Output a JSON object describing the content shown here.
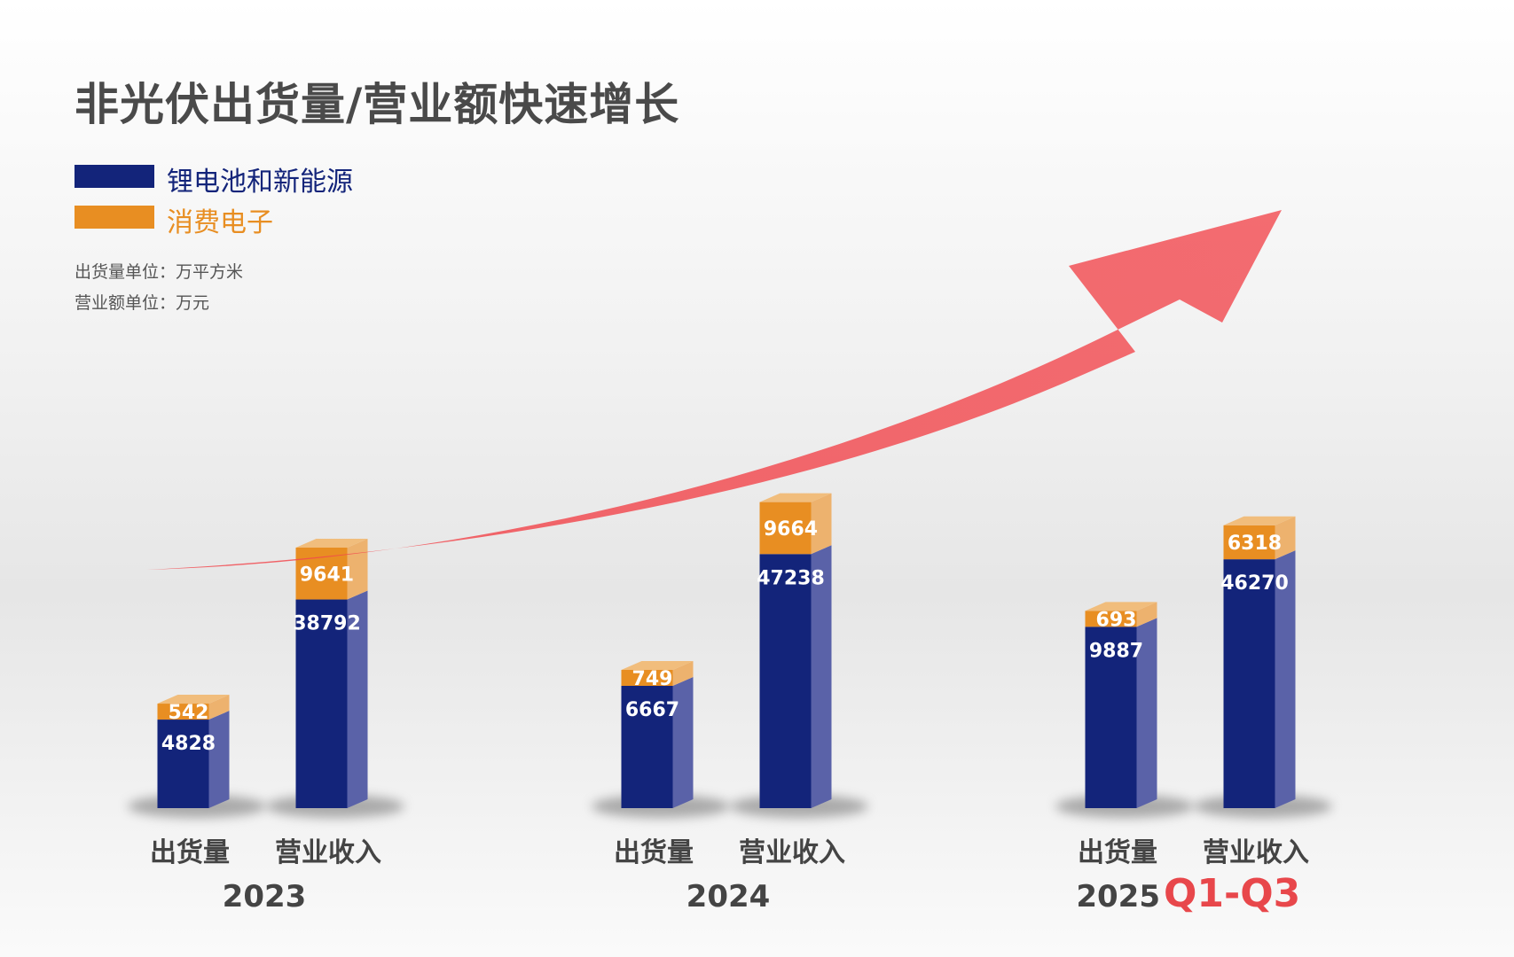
{
  "title": "非光伏出货量/营业额快速增长",
  "legend": [
    {
      "label": "锂电池和新能源",
      "color": "#13247a"
    },
    {
      "label": "消费电子",
      "color": "#e88e22"
    }
  ],
  "units": {
    "shipment": "出货量单位：万平方米",
    "revenue": "营业额单位：万元"
  },
  "colors": {
    "lithium": "#13247a",
    "lithium_side": "#5a62a8",
    "consumer": "#e88e22",
    "consumer_side": "#edb26e",
    "arrow": "#f2474d",
    "year_suffix": "#e8474b"
  },
  "chart_data": {
    "type": "bar",
    "stacked": true,
    "groups": [
      {
        "year": "2023",
        "suffix": "",
        "bars": [
          {
            "category": "出货量",
            "lithium": 4828,
            "consumer": 542
          },
          {
            "category": "营业收入",
            "lithium": 38792,
            "consumer": 9641
          }
        ]
      },
      {
        "year": "2024",
        "suffix": "",
        "bars": [
          {
            "category": "出货量",
            "lithium": 6667,
            "consumer": 749
          },
          {
            "category": "营业收入",
            "lithium": 47238,
            "consumer": 9664
          }
        ]
      },
      {
        "year": "2025",
        "suffix": "Q1-Q3",
        "bars": [
          {
            "category": "出货量",
            "lithium": 9887,
            "consumer": 693
          },
          {
            "category": "营业收入",
            "lithium": 46270,
            "consumer": 6318
          }
        ]
      }
    ],
    "series": [
      {
        "name": "锂电池和新能源",
        "key": "lithium"
      },
      {
        "name": "消费电子",
        "key": "consumer"
      }
    ],
    "trend_arrow": true
  }
}
